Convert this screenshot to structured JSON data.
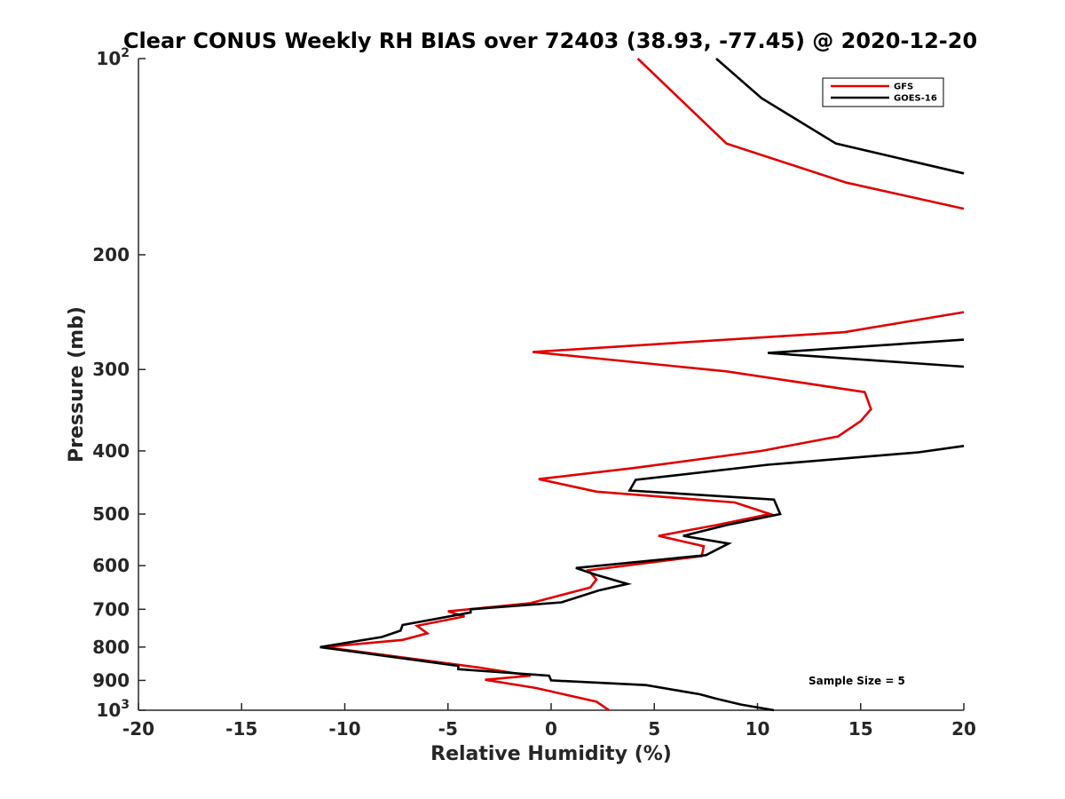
{
  "chart_data": {
    "type": "line",
    "title": "Clear CONUS Weekly RH BIAS over 72403 (38.93, -77.45) @ 2020-12-20",
    "xlabel": "Relative Humidity (%)",
    "ylabel": "Pressure (mb)",
    "xlim": [
      -20,
      20
    ],
    "ylim": [
      100,
      1000
    ],
    "yscale": "log",
    "y_reversed": true,
    "grid": false,
    "legend_position": "top-right",
    "x_ticks": [
      "-20",
      "-15",
      "-10",
      "-5",
      "0",
      "5",
      "10",
      "15",
      "20"
    ],
    "y_ticks": [
      {
        "value": 100,
        "base": "10",
        "exp": "2"
      },
      {
        "value": 200,
        "label": "200"
      },
      {
        "value": 300,
        "label": "300"
      },
      {
        "value": 400,
        "label": "400"
      },
      {
        "value": 500,
        "label": "500"
      },
      {
        "value": 600,
        "label": "600"
      },
      {
        "value": 700,
        "label": "700"
      },
      {
        "value": 800,
        "label": "800"
      },
      {
        "value": 900,
        "label": "900"
      },
      {
        "value": 1000,
        "base": "10",
        "exp": "3"
      }
    ],
    "series": [
      {
        "name": "GFS",
        "color": "#e00000",
        "segments": [
          [
            [
              4.2,
              100
            ],
            [
              6.2,
              115
            ],
            [
              8.5,
              135
            ],
            [
              14.3,
              155
            ],
            [
              20,
              170
            ]
          ],
          [
            [
              20,
              245
            ],
            [
              14.2,
              263
            ],
            [
              -0.9,
              282
            ],
            [
              8.5,
              302
            ],
            [
              15.2,
              325
            ],
            [
              15.5,
              345
            ],
            [
              15.0,
              360
            ],
            [
              13.9,
              380
            ],
            [
              10.2,
              400
            ],
            [
              4.0,
              425
            ],
            [
              -0.6,
              442
            ],
            [
              2.2,
              462
            ],
            [
              8.9,
              480
            ],
            [
              10.6,
              500
            ],
            [
              8.0,
              520
            ],
            [
              5.2,
              540
            ],
            [
              7.4,
              560
            ],
            [
              7.3,
              580
            ],
            [
              1.8,
              610
            ],
            [
              2.2,
              630
            ],
            [
              1.9,
              648
            ],
            [
              -1.0,
              685
            ],
            [
              -5.0,
              705
            ],
            [
              -4.2,
              718
            ],
            [
              -6.5,
              742
            ],
            [
              -6.0,
              762
            ],
            [
              -7.2,
              780
            ],
            [
              -11.0,
              800
            ],
            [
              -3.5,
              860
            ],
            [
              -1.0,
              885
            ],
            [
              -3.2,
              898
            ],
            [
              -0.7,
              925
            ],
            [
              0.6,
              945
            ],
            [
              2.2,
              970
            ],
            [
              2.8,
              1000
            ]
          ]
        ]
      },
      {
        "name": "GOES-16",
        "color": "#000000",
        "segments": [
          [
            [
              8.0,
              100
            ],
            [
              10.2,
              115
            ],
            [
              13.8,
              135
            ],
            [
              20,
              150
            ]
          ],
          [
            [
              20,
              270
            ],
            [
              10.5,
              283
            ],
            [
              20,
              297
            ]
          ],
          [
            [
              20,
              393
            ],
            [
              17.8,
              402
            ],
            [
              10.5,
              420
            ],
            [
              4.1,
              443
            ],
            [
              3.8,
              460
            ],
            [
              10.8,
              475
            ],
            [
              11.1,
              500
            ],
            [
              8.5,
              520
            ],
            [
              6.4,
              540
            ],
            [
              8.6,
              555
            ],
            [
              7.5,
              578
            ],
            [
              1.2,
              605
            ],
            [
              2.2,
              620
            ],
            [
              3.7,
              640
            ],
            [
              2.3,
              655
            ],
            [
              0.5,
              683
            ],
            [
              -3.9,
              700
            ],
            [
              -3.9,
              708
            ],
            [
              -7.2,
              740
            ],
            [
              -7.3,
              755
            ],
            [
              -8.2,
              772
            ],
            [
              -11.2,
              800
            ],
            [
              -4.5,
              855
            ],
            [
              -4.5,
              865
            ],
            [
              -0.1,
              885
            ],
            [
              0,
              900
            ],
            [
              4.6,
              915
            ],
            [
              7.2,
              945
            ],
            [
              8.0,
              960
            ],
            [
              9.2,
              980
            ],
            [
              10.8,
              1000
            ]
          ]
        ]
      }
    ],
    "annotations": [
      "Sample Size = 5"
    ]
  }
}
